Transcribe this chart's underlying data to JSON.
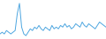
{
  "values": [
    2,
    3,
    2,
    4,
    3,
    2,
    3,
    4,
    14,
    20,
    6,
    2,
    1,
    3,
    5,
    4,
    6,
    5,
    7,
    5,
    4,
    6,
    5,
    4,
    7,
    5,
    6,
    5,
    7,
    6,
    8,
    6,
    7,
    5,
    6,
    8,
    7,
    6,
    9,
    7,
    6,
    8,
    7,
    6,
    5,
    7,
    9,
    8,
    7,
    6
  ],
  "line_color": "#4da6e0",
  "background_color": "#ffffff",
  "ylim_min": -1,
  "ylim_max": 22
}
